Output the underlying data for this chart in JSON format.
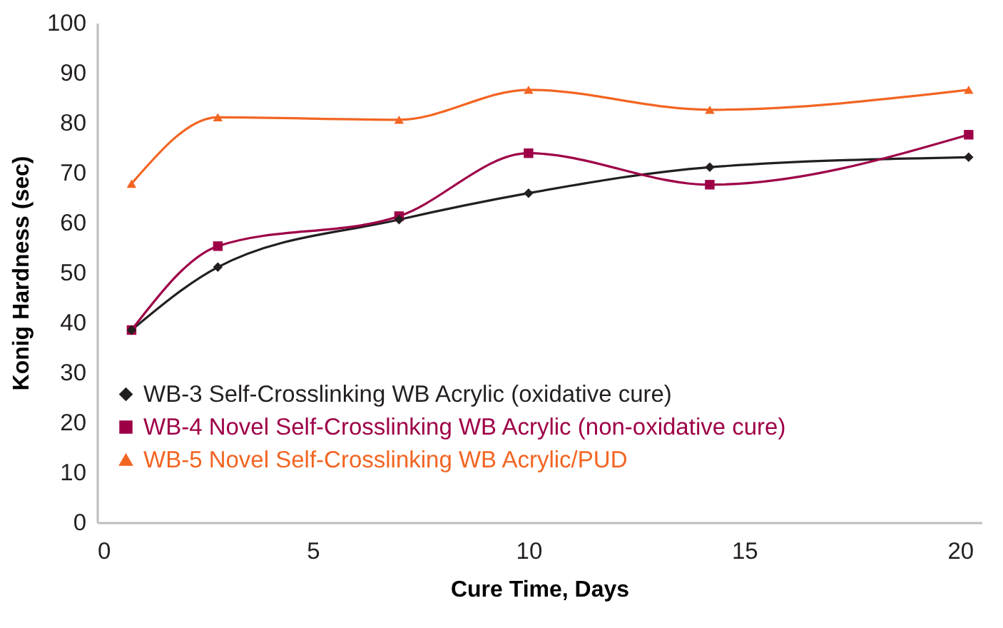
{
  "chart_data": {
    "type": "line",
    "xlabel": "Cure Time, Days",
    "ylabel": "Konig Hardness (sec)",
    "x": [
      0.8,
      2.8,
      7,
      10,
      14.2,
      20.2
    ],
    "series": [
      {
        "name": "WB-3 Self-Crosslinking WB Acrylic (oxidative cure)",
        "color": "#231f20",
        "marker": "diamond",
        "values": [
          38.5,
          51.1,
          60.6,
          65.9,
          71.1,
          73.1
        ]
      },
      {
        "name": "WB-4 Novel Self-Crosslinking WB Acrylic (non-oxidative cure)",
        "color": "#9e0047",
        "marker": "square",
        "values": [
          38.5,
          55.3,
          61.3,
          73.9,
          67.6,
          77.6
        ]
      },
      {
        "name": "WB-5 Novel Self-Crosslinking WB Acrylic/PUD",
        "color": "#f26522",
        "marker": "triangle",
        "values": [
          67.8,
          81.1,
          80.6,
          86.6,
          82.6,
          86.6
        ]
      }
    ],
    "xlim": [
      0,
      20.5
    ],
    "xticks": [
      0,
      5,
      10,
      15,
      20
    ],
    "ylim": [
      0,
      100
    ],
    "yticks": [
      0,
      10,
      20,
      30,
      40,
      50,
      60,
      70,
      80,
      90,
      100
    ],
    "grid": false,
    "legend": "bottom left",
    "line_style": "solid"
  }
}
